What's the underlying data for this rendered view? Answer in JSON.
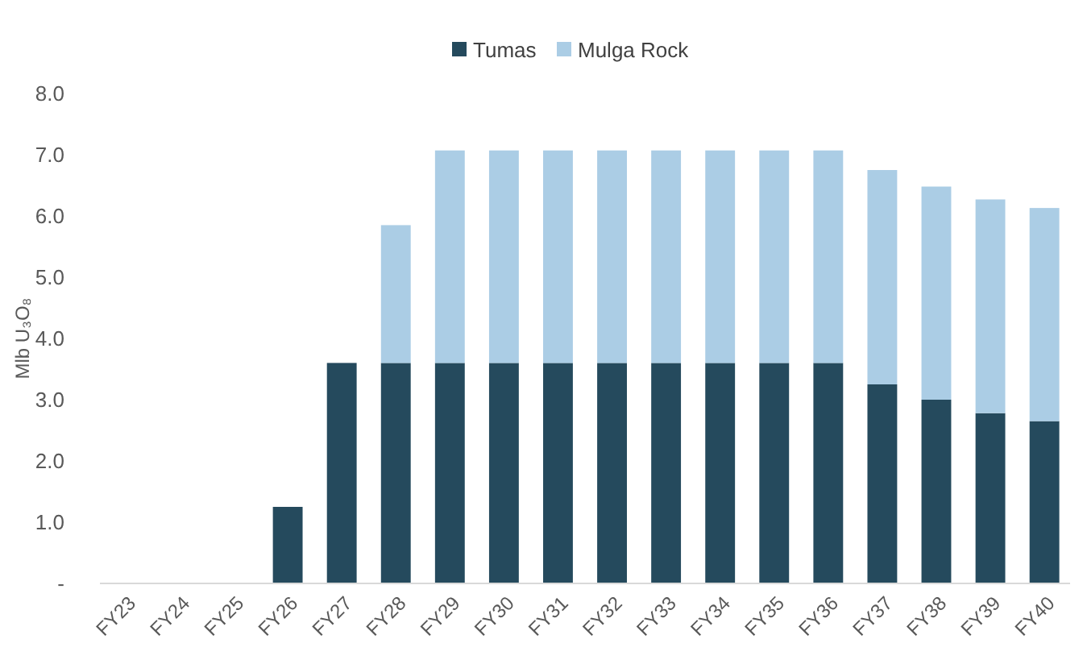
{
  "chart_data": {
    "type": "bar",
    "stacked": true,
    "ylabel": "Mlb U₃O₈",
    "categories": [
      "FY23",
      "FY24",
      "FY25",
      "FY26",
      "FY27",
      "FY28",
      "FY29",
      "FY30",
      "FY31",
      "FY32",
      "FY33",
      "FY34",
      "FY35",
      "FY36",
      "FY37",
      "FY38",
      "FY39",
      "FY40"
    ],
    "series": [
      {
        "name": "Tumas",
        "color": "#254a5d",
        "values": [
          0,
          0,
          0,
          1.25,
          3.6,
          3.6,
          3.6,
          3.6,
          3.6,
          3.6,
          3.6,
          3.6,
          3.6,
          3.6,
          3.25,
          3.0,
          2.78,
          2.65
        ]
      },
      {
        "name": "Mulga Rock",
        "color": "#abcde5",
        "values": [
          0,
          0,
          0,
          0,
          0,
          2.25,
          3.47,
          3.47,
          3.47,
          3.47,
          3.47,
          3.47,
          3.47,
          3.47,
          3.5,
          3.48,
          3.49,
          3.48
        ]
      }
    ],
    "ylim": [
      0,
      8
    ],
    "yticks": [
      {
        "value": 0,
        "label": "-"
      },
      {
        "value": 1,
        "label": "1.0"
      },
      {
        "value": 2,
        "label": "2.0"
      },
      {
        "value": 3,
        "label": "3.0"
      },
      {
        "value": 4,
        "label": "4.0"
      },
      {
        "value": 5,
        "label": "5.0"
      },
      {
        "value": 6,
        "label": "6.0"
      },
      {
        "value": 7,
        "label": "7.0"
      },
      {
        "value": 8,
        "label": "8.0"
      }
    ],
    "grid": false,
    "legend": "top"
  }
}
